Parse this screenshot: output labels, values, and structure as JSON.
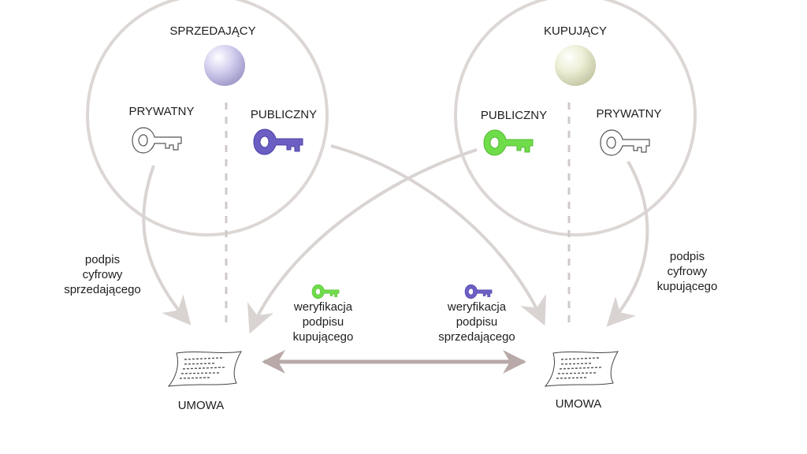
{
  "seller": {
    "title": "SPRZEDAJĄCY",
    "private_key_label": "PRYWATNY",
    "public_key_label": "PUBLICZNY",
    "signature_label": [
      "podpis",
      "cyfrowy",
      "sprzedającego"
    ]
  },
  "buyer": {
    "title": "KUPUJĄCY",
    "public_key_label": "PUBLICZNY",
    "private_key_label": "PRYWATNY",
    "signature_label": [
      "podpis",
      "cyfrowy",
      "kupującego"
    ]
  },
  "verification": {
    "buyer": [
      "weryfikacja",
      "podpisu",
      "kupującego"
    ],
    "seller": [
      "weryfikacja",
      "podpisu",
      "sprzedającego"
    ]
  },
  "contract_left_label": "UMOWA",
  "contract_right_label": "UMOWA",
  "colors": {
    "circle": "#dcd7d5",
    "arrow": "#d9d4d2",
    "double_arrow": "#b9a9a9",
    "seller_key": "#6b5fc4",
    "buyer_key": "#6fdc4a",
    "private_key": "#ffffff",
    "seller_sphere": "#c9c4ea",
    "buyer_sphere": "#eceed2"
  }
}
